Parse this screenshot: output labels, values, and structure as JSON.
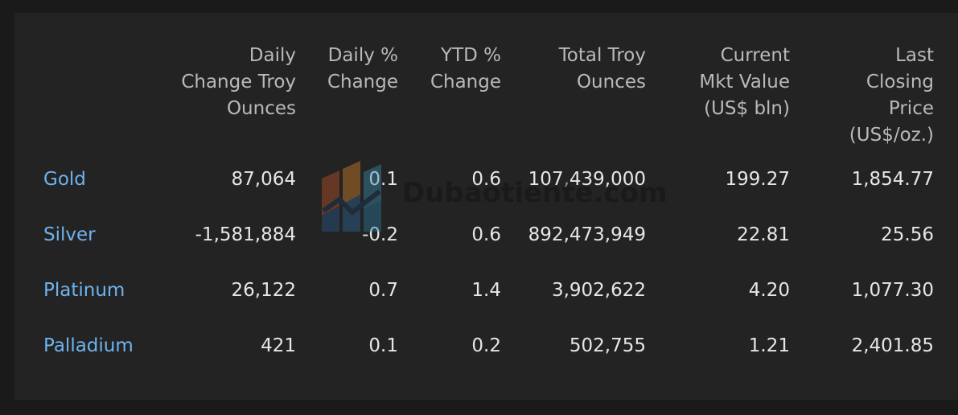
{
  "table": {
    "headers": [
      {
        "key": "metal",
        "lines": []
      },
      {
        "key": "daily_change_oz",
        "lines": [
          "Daily",
          "Change Troy",
          "Ounces"
        ]
      },
      {
        "key": "daily_pct",
        "lines": [
          "Daily %",
          "Change"
        ]
      },
      {
        "key": "ytd_pct",
        "lines": [
          "YTD %",
          "Change"
        ]
      },
      {
        "key": "total_oz",
        "lines": [
          "Total Troy",
          "Ounces"
        ]
      },
      {
        "key": "mkt_value",
        "lines": [
          "Current",
          "Mkt Value",
          "(US$ bln)"
        ]
      },
      {
        "key": "last_price",
        "lines": [
          "Last",
          "Closing",
          "Price",
          "(US$/oz.)"
        ]
      }
    ],
    "rows": [
      {
        "metal": "Gold",
        "daily_change_oz": "87,064",
        "daily_pct": "0.1",
        "ytd_pct": "0.6",
        "total_oz": "107,439,000",
        "mkt_value": "199.27",
        "last_price": "1,854.77"
      },
      {
        "metal": "Silver",
        "daily_change_oz": "-1,581,884",
        "daily_pct": "-0.2",
        "ytd_pct": "0.6",
        "total_oz": "892,473,949",
        "mkt_value": "22.81",
        "last_price": "25.56"
      },
      {
        "metal": "Platinum",
        "daily_change_oz": "26,122",
        "daily_pct": "0.7",
        "ytd_pct": "1.4",
        "total_oz": "3,902,622",
        "mkt_value": "4.20",
        "last_price": "1,077.30"
      },
      {
        "metal": "Palladium",
        "daily_change_oz": "421",
        "daily_pct": "0.1",
        "ytd_pct": "0.2",
        "total_oz": "502,755",
        "mkt_value": "1.21",
        "last_price": "2,401.85"
      }
    ]
  },
  "watermark": {
    "text": "Dubaotiente.com"
  },
  "colors": {
    "background": "#1a1a1a",
    "panel": "#232323",
    "metal_link": "#6eb3ee",
    "header_text": "#b9b9b9",
    "cell_text": "#e6e6e6"
  }
}
